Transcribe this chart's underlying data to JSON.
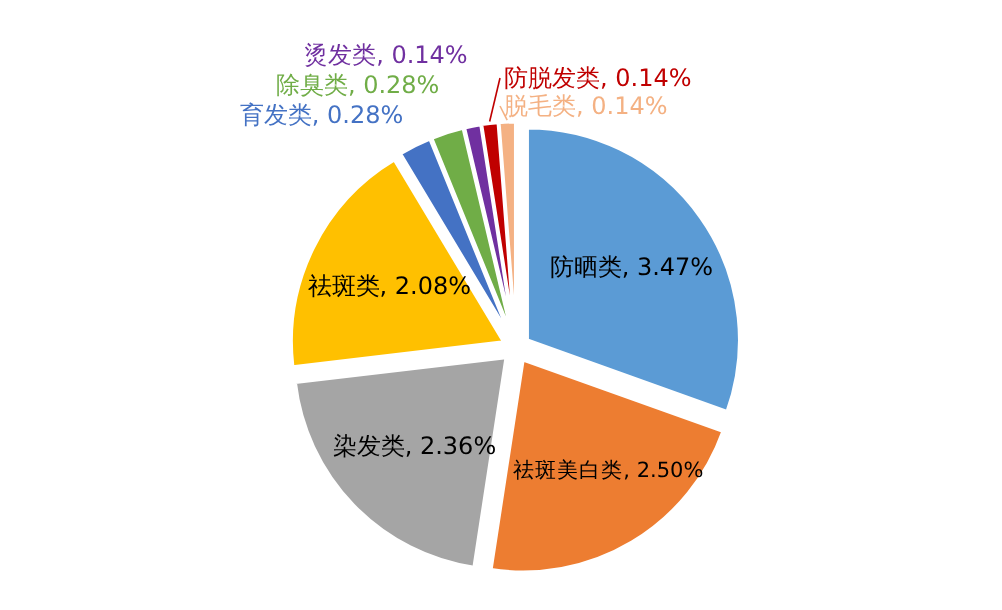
{
  "chart_data": {
    "type": "pie",
    "categories": [
      "防晒类",
      "祛斑美白类",
      "染发类",
      "祛斑类",
      "育发类",
      "除臭类",
      "烫发类",
      "防脱发类",
      "脱毛类"
    ],
    "values": [
      3.47,
      2.5,
      2.36,
      2.08,
      0.28,
      0.28,
      0.14,
      0.14,
      0.14
    ],
    "colors": [
      "#5b9bd5",
      "#ed7d31",
      "#a5a5a5",
      "#ffc000",
      "#4472c4",
      "#70ad47",
      "#7030a0",
      "#c00000",
      "#f4b183"
    ],
    "value_labels": [
      "3.47%",
      "2.50%",
      "2.36%",
      "2.08%",
      "0.28%",
      "0.28%",
      "0.14%",
      "0.14%",
      "0.14%"
    ]
  }
}
